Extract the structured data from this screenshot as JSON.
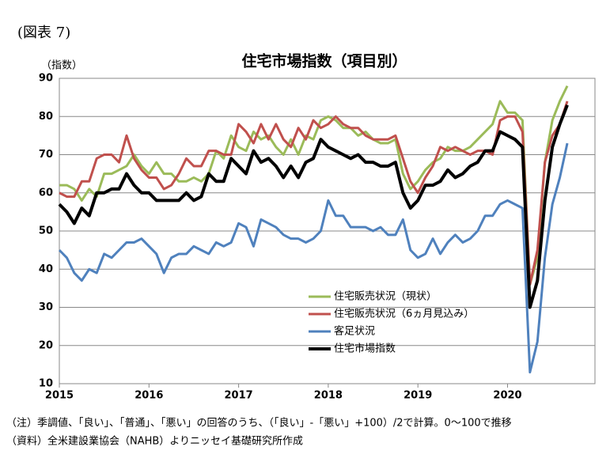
{
  "chart_data": {
    "type": "line",
    "figure_label": "(図表 7)",
    "title": "住宅市場指数（項目別）",
    "y_label": "（指数）",
    "notes": [
      "（注）季調値、「良い」、「普通」、「悪い」の回答のうち、（「良い」-「悪い」+100）/2で計算。0～100で推移",
      "（資料）全米建設業協会（NAHB）よりニッセイ基礎研究所作成"
    ],
    "categories": [
      "2015",
      null,
      null,
      null,
      null,
      null,
      null,
      null,
      null,
      null,
      null,
      null,
      "2016",
      null,
      null,
      null,
      null,
      null,
      null,
      null,
      null,
      null,
      null,
      null,
      "2017",
      null,
      null,
      null,
      null,
      null,
      null,
      null,
      null,
      null,
      null,
      null,
      "2018",
      null,
      null,
      null,
      null,
      null,
      null,
      null,
      null,
      null,
      null,
      null,
      "2019",
      null,
      null,
      null,
      null,
      null,
      null,
      null,
      null,
      null,
      null,
      null,
      "2020",
      null,
      null,
      null,
      null,
      null,
      null,
      null,
      null
    ],
    "ylim": [
      10,
      90
    ],
    "yticks": [
      10,
      20,
      30,
      40,
      50,
      60,
      70,
      80,
      90
    ],
    "grid": true,
    "series": [
      {
        "name": "住宅販売状況（現状）",
        "color": "#9bbb59",
        "width": 3,
        "values": [
          62,
          62,
          61,
          58,
          61,
          59,
          65,
          65,
          66,
          67,
          70,
          67,
          65,
          68,
          65,
          65,
          63,
          63,
          64,
          63,
          65,
          71,
          69,
          75,
          72,
          71,
          76,
          74,
          75,
          72,
          70,
          74,
          70,
          75,
          74,
          79,
          80,
          79,
          77,
          77,
          75,
          76,
          74,
          73,
          73,
          74,
          65,
          61,
          63,
          66,
          68,
          69,
          72,
          71,
          71,
          72,
          74,
          76,
          78,
          84,
          81,
          81,
          79,
          36,
          43,
          68,
          79,
          84,
          88
        ]
      },
      {
        "name": "住宅販売状況（6ヵ月見込み）",
        "color": "#c0504d",
        "width": 3,
        "values": [
          60,
          59,
          59,
          63,
          63,
          69,
          70,
          70,
          68,
          75,
          69,
          66,
          64,
          64,
          61,
          62,
          65,
          69,
          67,
          67,
          71,
          71,
          70,
          70,
          78,
          76,
          73,
          78,
          74,
          78,
          74,
          72,
          77,
          74,
          79,
          77,
          78,
          80,
          78,
          77,
          77,
          75,
          74,
          74,
          74,
          75,
          69,
          63,
          60,
          64,
          67,
          72,
          71,
          72,
          71,
          70,
          71,
          71,
          70,
          79,
          80,
          80,
          76,
          36,
          45,
          68,
          75,
          78,
          84
        ]
      },
      {
        "name": "客足状況",
        "color": "#4f81bd",
        "width": 3,
        "values": [
          45,
          43,
          39,
          37,
          40,
          39,
          44,
          43,
          45,
          47,
          47,
          48,
          46,
          44,
          39,
          43,
          44,
          44,
          46,
          45,
          44,
          47,
          46,
          47,
          52,
          51,
          46,
          53,
          52,
          51,
          49,
          48,
          48,
          47,
          48,
          50,
          58,
          54,
          54,
          51,
          51,
          51,
          50,
          51,
          49,
          49,
          53,
          45,
          43,
          44,
          48,
          44,
          47,
          49,
          47,
          48,
          50,
          54,
          54,
          57,
          58,
          57,
          56,
          13,
          21,
          43,
          57,
          64,
          73
        ]
      },
      {
        "name": "住宅市場指数",
        "color": "#000000",
        "width": 4,
        "values": [
          57,
          55,
          52,
          56,
          54,
          60,
          60,
          61,
          61,
          65,
          62,
          60,
          60,
          58,
          58,
          58,
          58,
          60,
          58,
          59,
          65,
          63,
          63,
          69,
          67,
          65,
          71,
          68,
          69,
          67,
          64,
          67,
          64,
          68,
          69,
          74,
          72,
          71,
          70,
          69,
          70,
          68,
          68,
          67,
          67,
          68,
          60,
          56,
          58,
          62,
          62,
          63,
          66,
          64,
          65,
          67,
          68,
          71,
          71,
          76,
          75,
          74,
          72,
          30,
          37,
          58,
          72,
          78,
          83
        ]
      }
    ]
  }
}
